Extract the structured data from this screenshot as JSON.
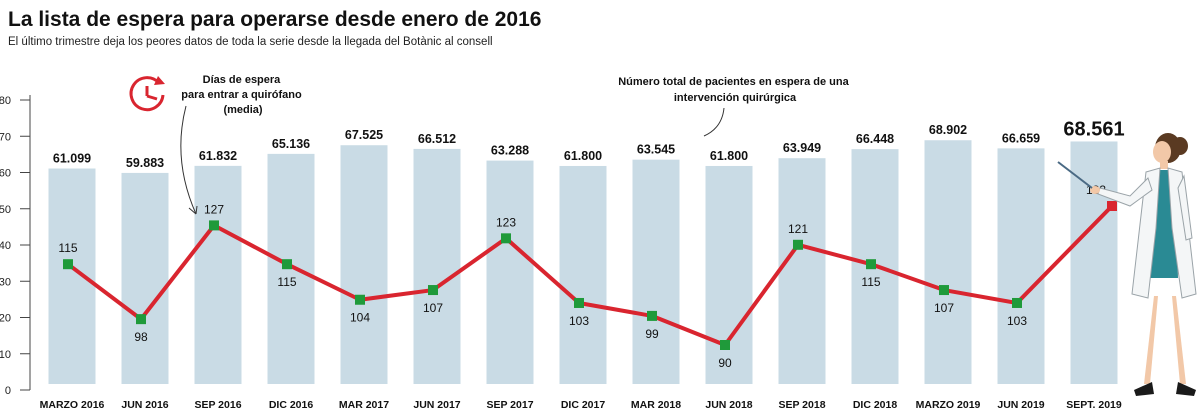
{
  "header": {
    "title": "La lista de espera para operarse desde enero de 2016",
    "subtitle": "El último trimestre deja los peores datos de toda la serie desde la llegada del Botànic al consell"
  },
  "chart_data": {
    "type": "bar",
    "title": "La lista de espera para operarse desde enero de 2016",
    "subtitle": "El último trimestre deja los peores datos de toda la serie desde la llegada del Botànic al consell",
    "categories": [
      "MARZO 2016",
      "JUN 2016",
      "SEP 2016",
      "DIC 2016",
      "MAR 2017",
      "JUN 2017",
      "SEP 2017",
      "DIC 2017",
      "MAR 2018",
      "JUN 2018",
      "SEP 2018",
      "DIC 2018",
      "MARZO 2019",
      "JUN 2019",
      "SEPT. 2019"
    ],
    "yticks": [
      0,
      10,
      20,
      30,
      40,
      50,
      60,
      70,
      80
    ],
    "ylim": [
      0,
      80
    ],
    "grid": false,
    "series": [
      {
        "name": "Número total de pacientes en espera de una intervención quirúrgica",
        "type": "bar",
        "color": "#c9dbe5",
        "values": [
          61099,
          59883,
          61832,
          65136,
          67525,
          66512,
          63288,
          61800,
          63545,
          61800,
          63949,
          66448,
          68902,
          66659,
          68561
        ],
        "labels": [
          "61.099",
          "59.883",
          "61.832",
          "65.136",
          "67.525",
          "66.512",
          "63.288",
          "61.800",
          "63.545",
          "61.800",
          "63.949",
          "66.448",
          "68.902",
          "66.659",
          "68.561"
        ]
      },
      {
        "name": "Días de espera para entrar a quirófano (media)",
        "type": "line",
        "color": "#d9252f",
        "marker_color": "#1f9a3a",
        "last_marker_color": "#d9252f",
        "values": [
          115,
          98,
          127,
          115,
          104,
          107,
          123,
          103,
          99,
          90,
          121,
          115,
          107,
          103,
          133
        ]
      }
    ],
    "annotations": {
      "days_note": [
        "Días de espera",
        "para entrar a quirófano",
        "(media)"
      ],
      "total_note": [
        "Número total de pacientes en espera de una",
        "intervención quirúrgica"
      ]
    }
  }
}
